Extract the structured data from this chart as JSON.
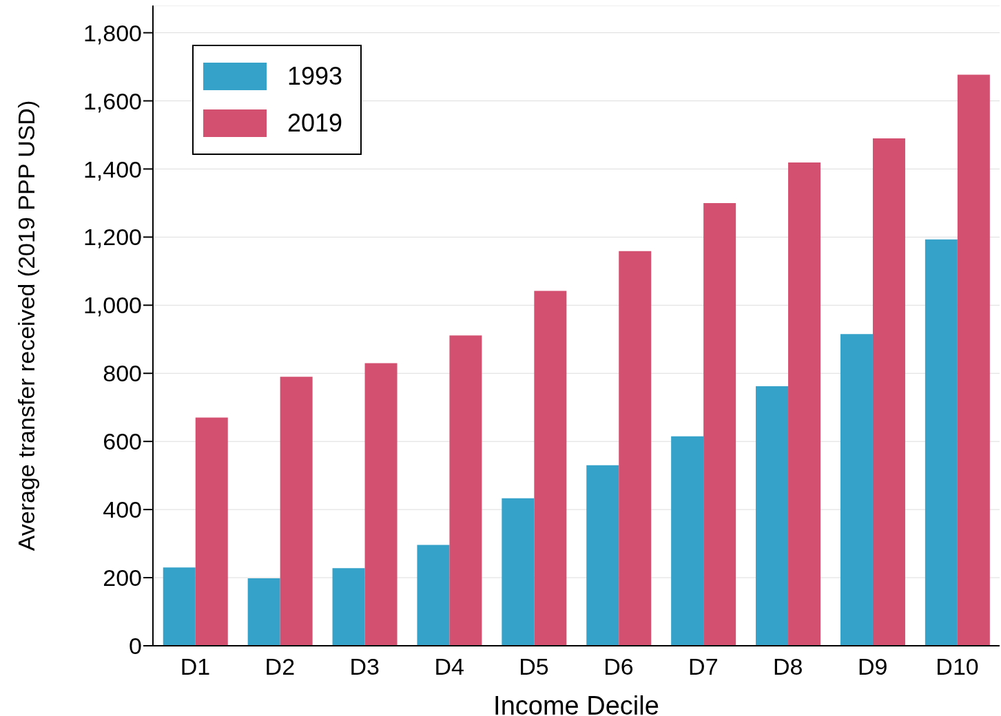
{
  "chart_data": {
    "type": "bar",
    "xlabel": "Income Decile",
    "ylabel": "Average transfer received (2019 PPP USD)",
    "categories": [
      "D1",
      "D2",
      "D3",
      "D4",
      "D5",
      "D6",
      "D7",
      "D8",
      "D9",
      "D10"
    ],
    "series": [
      {
        "name": "1993",
        "color": "#35a2c9",
        "values": [
          230,
          198,
          228,
          296,
          433,
          530,
          615,
          762,
          915,
          1193
        ]
      },
      {
        "name": "2019",
        "color": "#d35070",
        "values": [
          670,
          790,
          830,
          911,
          1042,
          1159,
          1300,
          1419,
          1490,
          1677
        ]
      }
    ],
    "ylim": [
      0,
      1880
    ],
    "yticks": [
      0,
      200,
      400,
      600,
      800,
      {
        "value": 1000,
        "label": "1,000"
      },
      {
        "value": 1200,
        "label": "1,200"
      },
      {
        "value": 1400,
        "label": "1,400"
      },
      {
        "value": 1600,
        "label": "1,600"
      },
      {
        "value": 1800,
        "label": "1,800"
      }
    ],
    "grid": "y",
    "legend": "top left"
  }
}
